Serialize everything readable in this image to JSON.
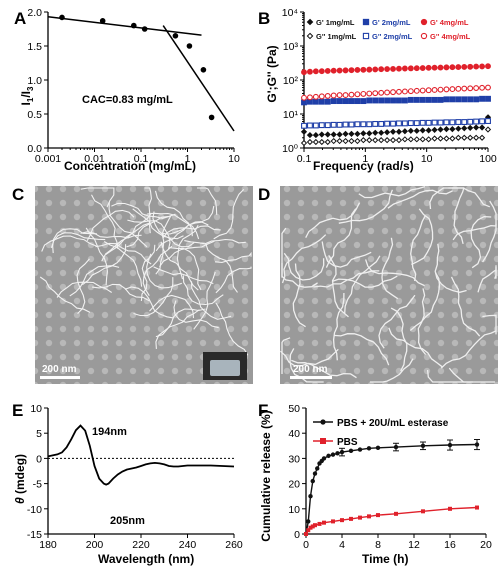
{
  "panels": {
    "A": "A",
    "B": "B",
    "C": "C",
    "D": "D",
    "E": "E",
    "F": "F"
  },
  "colors": {
    "black": "#111111",
    "blue": "#1f3fa8",
    "red": "#e0212b"
  },
  "chart_data": [
    {
      "id": "A",
      "type": "scatter",
      "xlabel": "Concentration (mg/mL)",
      "ylabel": "I1/I3",
      "ylabel_main": "I",
      "ylabel_sub1": "1",
      "ylabel_sep": "/I",
      "ylabel_sub2": "3",
      "x_scale": "log",
      "xlim": [
        0.001,
        10
      ],
      "ylim": [
        0,
        2.0
      ],
      "xticks": [
        "0.001",
        "0.01",
        "0.1",
        "1",
        "10"
      ],
      "yticks": [
        "0.0",
        "0.5",
        "1.0",
        "1.5",
        "2.0"
      ],
      "annotation": "CAC=0.83 mg/mL",
      "points": [
        {
          "x": 0.002,
          "y": 1.92
        },
        {
          "x": 0.015,
          "y": 1.87
        },
        {
          "x": 0.07,
          "y": 1.8
        },
        {
          "x": 0.12,
          "y": 1.75
        },
        {
          "x": 0.55,
          "y": 1.65
        },
        {
          "x": 1.1,
          "y": 1.5
        },
        {
          "x": 2.2,
          "y": 1.15
        },
        {
          "x": 3.3,
          "y": 0.45
        }
      ],
      "fit_lines": [
        [
          {
            "x": 0.001,
            "y": 1.93
          },
          {
            "x": 2.0,
            "y": 1.66
          }
        ],
        [
          {
            "x": 0.3,
            "y": 1.8
          },
          {
            "x": 10,
            "y": 0.25
          }
        ]
      ]
    },
    {
      "id": "B",
      "type": "scatter",
      "xlabel": "Frequency (rad/s)",
      "ylabel": "G';G'' (Pa)",
      "x_scale": "log",
      "y_scale": "log",
      "xlim": [
        0.1,
        100
      ],
      "ylim": [
        1,
        10000
      ],
      "xticks": [
        "0.1",
        "1",
        "10",
        "100"
      ],
      "yticks": [
        "10⁰",
        "10¹",
        "10²",
        "10³",
        "10⁴"
      ],
      "series": [
        {
          "name": "G' 1mg/mL",
          "color": "#111111",
          "marker": "diamond",
          "filled": true,
          "y_values": [
            3.0,
            2.4,
            2.4,
            2.5,
            2.5,
            2.5,
            2.5,
            2.6,
            2.6,
            2.6,
            2.7,
            2.7,
            2.8,
            2.8,
            2.9,
            3.0,
            3.0,
            3.1,
            3.2,
            3.2,
            3.3,
            3.3,
            3.4,
            3.5,
            3.6,
            3.6,
            3.7,
            3.8,
            3.9,
            4.0,
            4.0,
            8.0
          ]
        },
        {
          "name": "G'' 1mg/mL",
          "color": "#111111",
          "marker": "diamond",
          "filled": false,
          "y_values": [
            1.4,
            1.5,
            1.5,
            1.5,
            1.5,
            1.6,
            1.6,
            1.6,
            1.6,
            1.6,
            1.7,
            1.7,
            1.7,
            1.7,
            1.7,
            1.7,
            1.7,
            1.8,
            1.8,
            1.8,
            1.8,
            1.8,
            1.9,
            1.9,
            1.9,
            1.9,
            2.0,
            2.0,
            2.0,
            2.0,
            2.0,
            3.5
          ]
        },
        {
          "name": "G' 2mg/mL",
          "color": "#1f3fa8",
          "marker": "square",
          "filled": true,
          "y_values": [
            22,
            23,
            23,
            23,
            23,
            24,
            24,
            24,
            24,
            24,
            24,
            25,
            25,
            25,
            25,
            25,
            25,
            25,
            26,
            26,
            26,
            26,
            26,
            26,
            27,
            27,
            27,
            27,
            27,
            27,
            28,
            28
          ]
        },
        {
          "name": "G'' 2mg/mL",
          "color": "#1f3fa8",
          "marker": "square",
          "filled": false,
          "y_values": [
            4.5,
            4.6,
            4.6,
            4.7,
            4.7,
            4.8,
            4.8,
            4.9,
            4.9,
            5.0,
            5.0,
            5.0,
            5.1,
            5.1,
            5.2,
            5.2,
            5.3,
            5.3,
            5.4,
            5.4,
            5.5,
            5.5,
            5.6,
            5.6,
            5.7,
            5.7,
            5.8,
            5.8,
            5.9,
            6.0,
            6.1,
            6.2
          ]
        },
        {
          "name": "G' 4mg/mL",
          "color": "#e0212b",
          "marker": "circle",
          "filled": true,
          "y_values": [
            170,
            175,
            180,
            182,
            185,
            188,
            190,
            192,
            195,
            198,
            200,
            202,
            205,
            208,
            210,
            212,
            215,
            218,
            220,
            222,
            225,
            228,
            230,
            232,
            235,
            238,
            240,
            242,
            245,
            248,
            250,
            255
          ]
        },
        {
          "name": "G'' 4mg/mL",
          "color": "#e0212b",
          "marker": "circle",
          "filled": false,
          "y_values": [
            30,
            31,
            32,
            33,
            34,
            35,
            36,
            36,
            37,
            38,
            39,
            40,
            41,
            42,
            43,
            44,
            45,
            46,
            47,
            48,
            49,
            50,
            51,
            52,
            53,
            54,
            55,
            56,
            57,
            58,
            59,
            60
          ]
        }
      ]
    },
    {
      "id": "E",
      "type": "line",
      "xlabel": "Wavelength (nm)",
      "ylabel_greek": "θ",
      "ylabel_rest": " (mdeg)",
      "xlim": [
        180,
        260
      ],
      "ylim": [
        -15,
        10
      ],
      "xticks": [
        "180",
        "200",
        "220",
        "240",
        "260"
      ],
      "yticks": [
        "-15",
        "-10",
        "-5",
        "0",
        "5",
        "10"
      ],
      "annotations": [
        "194nm",
        "205nm"
      ],
      "x": [
        180,
        182,
        184,
        186,
        188,
        190,
        192,
        194,
        196,
        198,
        200,
        202,
        204,
        205,
        206,
        208,
        210,
        212,
        214,
        216,
        218,
        220,
        222,
        224,
        226,
        228,
        230,
        232,
        234,
        236,
        238,
        240,
        245,
        250,
        255,
        260
      ],
      "y": [
        0.4,
        0.6,
        0.8,
        1.2,
        2.2,
        3.8,
        5.6,
        6.5,
        5.5,
        2.5,
        -1.5,
        -4.0,
        -5.0,
        -5.2,
        -5.0,
        -4.0,
        -3.2,
        -2.6,
        -2.2,
        -2.0,
        -1.8,
        -1.5,
        -1.2,
        -1.0,
        -0.9,
        -1.0,
        -1.2,
        -1.5,
        -1.6,
        -1.6,
        -1.5,
        -1.4,
        -1.4,
        -1.4,
        -1.5,
        -1.6
      ]
    },
    {
      "id": "F",
      "type": "line",
      "xlabel": "Time (h)",
      "ylabel": "Cumulative release (%)",
      "xlim": [
        0,
        20
      ],
      "ylim": [
        0,
        50
      ],
      "xticks": [
        "0",
        "4",
        "8",
        "12",
        "16",
        "20"
      ],
      "yticks": [
        "0",
        "10",
        "20",
        "30",
        "40",
        "50"
      ],
      "series": [
        {
          "name": "PBS + 20U/mL esterase",
          "color": "#111111",
          "x": [
            0,
            0.25,
            0.5,
            0.75,
            1,
            1.25,
            1.5,
            1.75,
            2,
            2.5,
            3,
            3.5,
            4,
            5,
            6,
            7,
            8,
            10,
            13,
            16,
            19
          ],
          "y": [
            0,
            5,
            15,
            21,
            24,
            26,
            28,
            29,
            30,
            31,
            31.5,
            32,
            32.5,
            33,
            33.5,
            34,
            34.2,
            34.5,
            35,
            35.3,
            35.5
          ],
          "err": [
            0,
            0,
            0,
            0,
            0,
            0,
            0,
            0,
            0,
            0,
            0,
            0,
            1.5,
            0,
            0,
            0,
            0,
            1.5,
            1.5,
            2,
            2
          ]
        },
        {
          "name": "PBS",
          "color": "#e0212b",
          "x": [
            0,
            0.25,
            0.5,
            0.75,
            1,
            1.5,
            2,
            3,
            4,
            5,
            6,
            7,
            8,
            10,
            13,
            16,
            19
          ],
          "y": [
            0,
            1.5,
            2.5,
            3,
            3.5,
            4,
            4.5,
            5,
            5.5,
            6,
            6.5,
            7,
            7.5,
            8,
            9,
            10,
            10.5
          ],
          "err": [
            0,
            0,
            0,
            0,
            0,
            0,
            0,
            0,
            0,
            0,
            0,
            0,
            0,
            0,
            0,
            0,
            0
          ]
        }
      ]
    }
  ],
  "micrographs": {
    "C": {
      "scale_bar": "200 nm"
    },
    "D": {
      "scale_bar": "200 nm"
    }
  }
}
